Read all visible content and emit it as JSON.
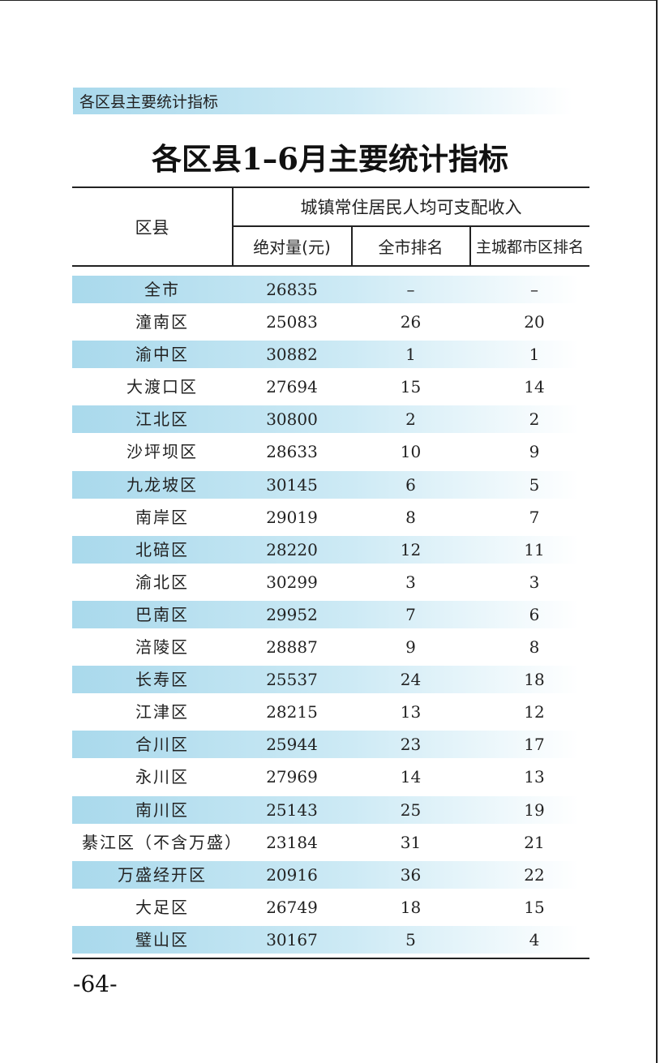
{
  "section_label": "各区县主要统计指标",
  "title": "各区县1–6月主要统计指标",
  "header": {
    "district": "区县",
    "group": "城镇常住居民人均可支配收入",
    "absolute": "绝对量(元)",
    "city_rank": "全市排名",
    "main_urban_rank": "主城都市区排名"
  },
  "rows": [
    {
      "name": "全市",
      "value": "26835",
      "city_rank": "–",
      "urban_rank": "–"
    },
    {
      "name": "潼南区",
      "value": "25083",
      "city_rank": "26",
      "urban_rank": "20"
    },
    {
      "name": "渝中区",
      "value": "30882",
      "city_rank": "1",
      "urban_rank": "1"
    },
    {
      "name": "大渡口区",
      "value": "27694",
      "city_rank": "15",
      "urban_rank": "14"
    },
    {
      "name": "江北区",
      "value": "30800",
      "city_rank": "2",
      "urban_rank": "2"
    },
    {
      "name": "沙坪坝区",
      "value": "28633",
      "city_rank": "10",
      "urban_rank": "9"
    },
    {
      "name": "九龙坡区",
      "value": "30145",
      "city_rank": "6",
      "urban_rank": "5"
    },
    {
      "name": "南岸区",
      "value": "29019",
      "city_rank": "8",
      "urban_rank": "7"
    },
    {
      "name": "北碚区",
      "value": "28220",
      "city_rank": "12",
      "urban_rank": "11"
    },
    {
      "name": "渝北区",
      "value": "30299",
      "city_rank": "3",
      "urban_rank": "3"
    },
    {
      "name": "巴南区",
      "value": "29952",
      "city_rank": "7",
      "urban_rank": "6"
    },
    {
      "name": "涪陵区",
      "value": "28887",
      "city_rank": "9",
      "urban_rank": "8"
    },
    {
      "name": "长寿区",
      "value": "25537",
      "city_rank": "24",
      "urban_rank": "18"
    },
    {
      "name": "江津区",
      "value": "28215",
      "city_rank": "13",
      "urban_rank": "12"
    },
    {
      "name": "合川区",
      "value": "25944",
      "city_rank": "23",
      "urban_rank": "17"
    },
    {
      "name": "永川区",
      "value": "27969",
      "city_rank": "14",
      "urban_rank": "13"
    },
    {
      "name": "南川区",
      "value": "25143",
      "city_rank": "25",
      "urban_rank": "19"
    },
    {
      "name": "綦江区（不含万盛）",
      "value": "23184",
      "city_rank": "31",
      "urban_rank": "21"
    },
    {
      "name": "万盛经开区",
      "value": "20916",
      "city_rank": "36",
      "urban_rank": "22"
    },
    {
      "name": "大足区",
      "value": "26749",
      "city_rank": "18",
      "urban_rank": "15"
    },
    {
      "name": "璧山区",
      "value": "30167",
      "city_rank": "5",
      "urban_rank": "4"
    }
  ],
  "page_number": "-64-"
}
